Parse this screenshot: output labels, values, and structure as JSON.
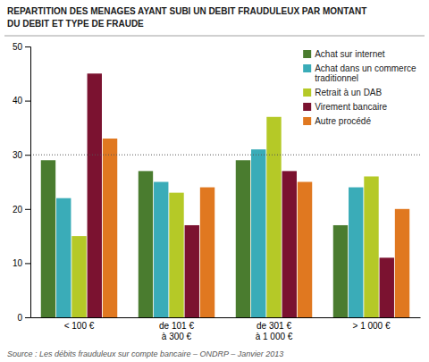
{
  "chart_data": {
    "type": "bar",
    "title": "REPARTITION DES MENAGES AYANT SUBI UN DEBIT FRAUDULEUX PAR MONTANT\nDU DEBIT ET TYPE DE FRAUDE",
    "categories": [
      "< 100 €",
      "de 101 €\nà 300 €",
      "de 301 €\nà 1 000 €",
      "> 1 000 €"
    ],
    "series": [
      {
        "name": "Achat sur internet",
        "color": "#4a7c2f",
        "values": [
          29,
          27,
          29,
          17
        ]
      },
      {
        "name": "Achat dans un commerce\ntraditionnel",
        "color": "#3aacb8",
        "values": [
          22,
          25,
          31,
          24
        ]
      },
      {
        "name": "Retrait à un DAB",
        "color": "#b5c927",
        "values": [
          15,
          23,
          37,
          26
        ]
      },
      {
        "name": "Virement bancaire",
        "color": "#7b1230",
        "values": [
          45,
          17,
          27,
          11
        ]
      },
      {
        "name": "Autre procédé",
        "color": "#e07820",
        "values": [
          33,
          24,
          25,
          20
        ]
      }
    ],
    "ylim": [
      0,
      50
    ],
    "yticks": [
      0,
      10,
      20,
      30,
      40,
      50
    ],
    "hline_y": 30,
    "legend": "upper right",
    "grid": false,
    "source": "Source : Les débits frauduleux sur compte bancaire – ONDRP – Janvier 2013"
  }
}
